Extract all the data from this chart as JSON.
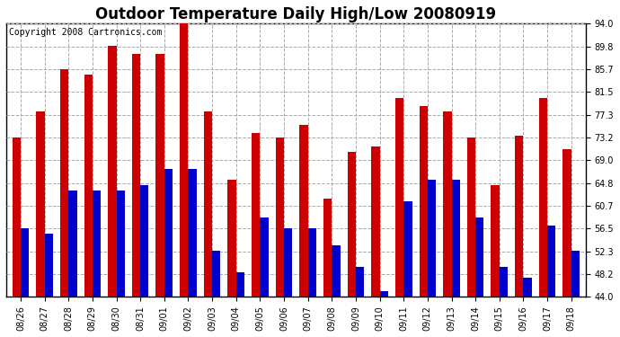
{
  "title": "Outdoor Temperature Daily High/Low 20080919",
  "copyright": "Copyright 2008 Cartronics.com",
  "dates": [
    "08/26",
    "08/27",
    "08/28",
    "08/29",
    "08/30",
    "08/31",
    "09/01",
    "09/02",
    "09/03",
    "09/04",
    "09/05",
    "09/06",
    "09/07",
    "09/08",
    "09/09",
    "09/10",
    "09/11",
    "09/12",
    "09/13",
    "09/14",
    "09/15",
    "09/16",
    "09/17",
    "09/18"
  ],
  "highs": [
    73.2,
    78.0,
    85.7,
    84.7,
    90.0,
    88.5,
    88.5,
    94.0,
    78.0,
    65.5,
    74.0,
    73.2,
    75.5,
    62.0,
    70.5,
    71.5,
    80.5,
    79.0,
    78.0,
    73.2,
    64.5,
    73.5,
    80.5,
    71.0
  ],
  "lows": [
    56.5,
    55.5,
    63.5,
    63.5,
    63.5,
    64.5,
    67.5,
    67.5,
    52.5,
    48.5,
    58.5,
    56.5,
    56.5,
    53.5,
    49.5,
    45.0,
    61.5,
    65.5,
    65.5,
    58.5,
    49.5,
    47.5,
    57.0,
    52.5
  ],
  "bar_color_high": "#cc0000",
  "bar_color_low": "#0000cc",
  "bg_color": "#ffffff",
  "grid_color": "#aaaaaa",
  "ylim_min": 44.0,
  "ylim_max": 94.0,
  "yticks": [
    44.0,
    48.2,
    52.3,
    56.5,
    60.7,
    64.8,
    69.0,
    73.2,
    77.3,
    81.5,
    85.7,
    89.8,
    94.0
  ],
  "title_fontsize": 12,
  "copyright_fontsize": 7,
  "tick_fontsize": 7,
  "bar_width": 0.35,
  "figsize": [
    6.9,
    3.75
  ],
  "dpi": 100
}
